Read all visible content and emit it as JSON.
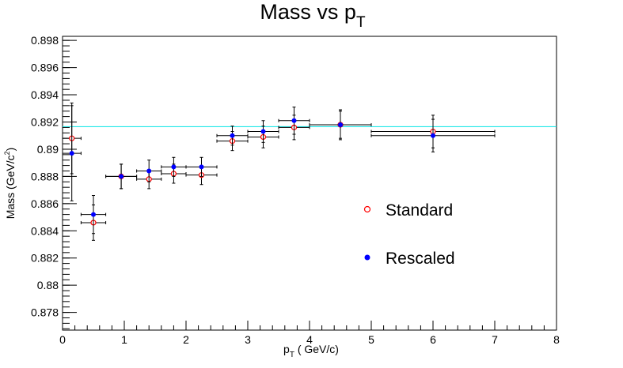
{
  "chart_data": {
    "type": "scatter",
    "title_main": "Mass vs p",
    "title_sub": "T",
    "xlabel_main": "p",
    "xlabel_sub": "T",
    "xlabel_rest": " ( GeV/c)",
    "ylabel_pre": "Mass (GeV/c",
    "ylabel_sup": "2",
    "ylabel_post": ")",
    "xlim": [
      0,
      8
    ],
    "ylim": [
      0.8767,
      0.8983
    ],
    "x_ticks": [
      0,
      1,
      2,
      3,
      4,
      5,
      6,
      7,
      8
    ],
    "x_tick_labels": [
      "0",
      "1",
      "2",
      "3",
      "4",
      "5",
      "6",
      "7",
      "8"
    ],
    "y_ticks": [
      0.878,
      0.88,
      0.882,
      0.884,
      0.886,
      0.888,
      0.89,
      0.892,
      0.894,
      0.896,
      0.898
    ],
    "y_tick_labels": [
      "0.878",
      "0.88",
      "0.882",
      "0.884",
      "0.886",
      "0.888",
      "0.89",
      "0.892",
      "0.894",
      "0.896",
      "0.898"
    ],
    "reference_line": {
      "y": 0.89166,
      "color": "#00e5e5"
    },
    "grid": false,
    "legend_position": "center-right",
    "series": [
      {
        "name": "Standard",
        "marker": "open-circle",
        "color": "#ff0000",
        "points": [
          {
            "x": 0.15,
            "xerr": 0.15,
            "y": 0.8908,
            "yerr": 0.0026
          },
          {
            "x": 0.5,
            "xerr": 0.2,
            "y": 0.8846,
            "yerr": 0.0013
          },
          {
            "x": 0.95,
            "xerr": 0.25,
            "y": 0.888,
            "yerr": 0.0009
          },
          {
            "x": 1.4,
            "xerr": 0.2,
            "y": 0.8878,
            "yerr": 0.0007
          },
          {
            "x": 1.8,
            "xerr": 0.2,
            "y": 0.8882,
            "yerr": 0.0007
          },
          {
            "x": 2.25,
            "xerr": 0.25,
            "y": 0.8881,
            "yerr": 0.0007
          },
          {
            "x": 2.75,
            "xerr": 0.25,
            "y": 0.8906,
            "yerr": 0.0007
          },
          {
            "x": 3.25,
            "xerr": 0.25,
            "y": 0.8909,
            "yerr": 0.0008
          },
          {
            "x": 3.75,
            "xerr": 0.25,
            "y": 0.8916,
            "yerr": 0.0009
          },
          {
            "x": 4.5,
            "xerr": 0.5,
            "y": 0.8918,
            "yerr": 0.001
          },
          {
            "x": 6.0,
            "xerr": 1.0,
            "y": 0.8913,
            "yerr": 0.0012
          }
        ]
      },
      {
        "name": "Rescaled",
        "marker": "filled-circle",
        "color": "#0000ff",
        "points": [
          {
            "x": 0.15,
            "xerr": 0.15,
            "y": 0.8897,
            "yerr": 0.0035
          },
          {
            "x": 0.5,
            "xerr": 0.2,
            "y": 0.8852,
            "yerr": 0.0014
          },
          {
            "x": 0.95,
            "xerr": 0.25,
            "y": 0.888,
            "yerr": 0.0009
          },
          {
            "x": 1.4,
            "xerr": 0.2,
            "y": 0.8884,
            "yerr": 0.0008
          },
          {
            "x": 1.8,
            "xerr": 0.2,
            "y": 0.8887,
            "yerr": 0.0007
          },
          {
            "x": 2.25,
            "xerr": 0.25,
            "y": 0.8887,
            "yerr": 0.0007
          },
          {
            "x": 2.75,
            "xerr": 0.25,
            "y": 0.891,
            "yerr": 0.0007
          },
          {
            "x": 3.25,
            "xerr": 0.25,
            "y": 0.8913,
            "yerr": 0.0008
          },
          {
            "x": 3.75,
            "xerr": 0.25,
            "y": 0.8921,
            "yerr": 0.001
          },
          {
            "x": 4.5,
            "xerr": 0.5,
            "y": 0.8918,
            "yerr": 0.0011
          },
          {
            "x": 6.0,
            "xerr": 1.0,
            "y": 0.891,
            "yerr": 0.0012
          }
        ]
      }
    ]
  }
}
